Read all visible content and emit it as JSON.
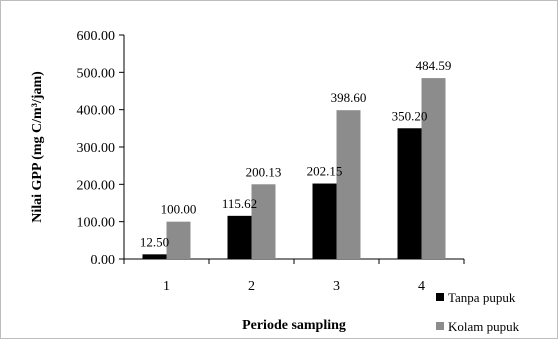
{
  "chart_data": {
    "type": "bar",
    "title": "",
    "xlabel": "Periode sampling",
    "ylabel": "Nilai GPP (mg C/m³/jam)",
    "categories": [
      "1",
      "2",
      "3",
      "4"
    ],
    "ylim": [
      0,
      600
    ],
    "yticks": [
      "0.00",
      "100.00",
      "200.00",
      "300.00",
      "400.00",
      "500.00",
      "600.00"
    ],
    "grid": false,
    "legend_position": "bottom-right",
    "series": [
      {
        "name": "Tanpa pupuk",
        "color": "#000000",
        "values": [
          12.5,
          115.62,
          202.15,
          350.2
        ],
        "labels": [
          "12.50",
          "115.62",
          "202.15",
          "350.20"
        ]
      },
      {
        "name": "Kolam pupuk",
        "color": "#8c8c8c",
        "values": [
          100.0,
          200.13,
          398.6,
          484.59
        ],
        "labels": [
          "100.00",
          "200.13",
          "398.60",
          "484.59"
        ]
      }
    ]
  }
}
